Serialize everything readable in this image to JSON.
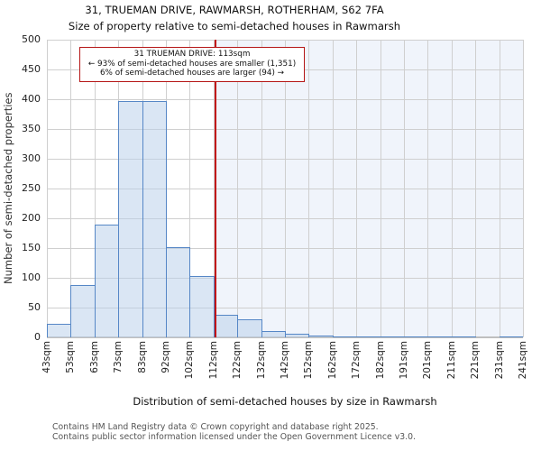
{
  "page_title": "31, TRUEMAN DRIVE, RAWMARSH, ROTHERHAM, S62 7FA",
  "subtitle": "Size of property relative to semi-detached houses in Rawmarsh",
  "callout": {
    "line1": "31 TRUEMAN DRIVE: 113sqm",
    "line2": "← 93% of semi-detached houses are smaller (1,351)",
    "line3": "6% of semi-detached houses are larger (94) →"
  },
  "chart_data": {
    "type": "bar",
    "title": "31, TRUEMAN DRIVE, RAWMARSH, ROTHERHAM, S62 7FA",
    "subtitle": "Size of property relative to semi-detached houses in Rawmarsh",
    "xlabel": "Distribution of semi-detached houses by size in Rawmarsh",
    "ylabel": "Number of semi-detached properties",
    "categories": [
      "43sqm",
      "53sqm",
      "63sqm",
      "73sqm",
      "83sqm",
      "92sqm",
      "102sqm",
      "112sqm",
      "122sqm",
      "132sqm",
      "142sqm",
      "152sqm",
      "162sqm",
      "172sqm",
      "182sqm",
      "191sqm",
      "201sqm",
      "211sqm",
      "221sqm",
      "231sqm",
      "241sqm"
    ],
    "bin_edges_sqm": [
      43,
      53,
      63,
      73,
      83,
      92,
      102,
      112,
      122,
      132,
      142,
      152,
      162,
      172,
      182,
      191,
      201,
      211,
      221,
      231,
      241
    ],
    "values": [
      23,
      88,
      190,
      397,
      397,
      151,
      103,
      38,
      30,
      10,
      6,
      3,
      2,
      2,
      1,
      1,
      1,
      1,
      0,
      2
    ],
    "ylim": [
      0,
      500
    ],
    "yticks": [
      0,
      50,
      100,
      150,
      200,
      250,
      300,
      350,
      400,
      450,
      500
    ],
    "grid": true,
    "legend": "none",
    "marker": {
      "value_sqm": 113,
      "label": "113sqm",
      "color": "#c11212"
    },
    "colors": {
      "bar_fill": "#dbe6f5",
      "bar_edge": "#5687c6",
      "shade_right_of_marker": "#f0f4fb",
      "gridline": "#cfcfcf",
      "callout_border": "#b51616"
    }
  },
  "footer": {
    "line1": "Contains HM Land Registry data © Crown copyright and database right 2025.",
    "line2": "Contains public sector information licensed under the Open Government Licence v3.0."
  }
}
